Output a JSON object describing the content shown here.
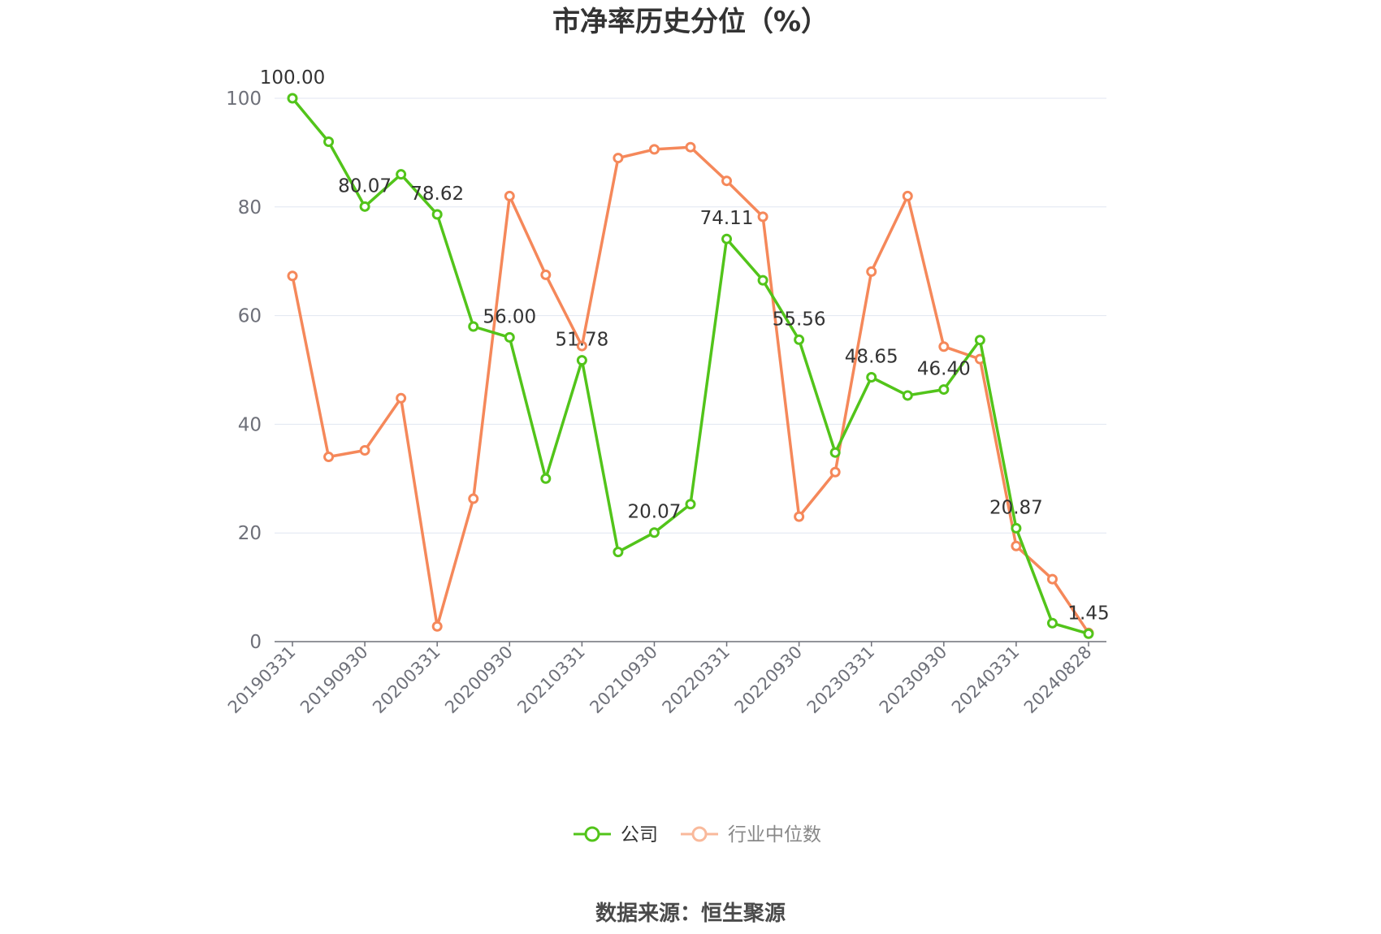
{
  "chart_data": {
    "type": "line",
    "title": "市净率历史分位（%）",
    "xlabel": "",
    "ylabel": "",
    "ylim": [
      0,
      100
    ],
    "y_ticks": [
      0,
      20,
      40,
      60,
      80,
      100
    ],
    "x_tick_labels": [
      "20190331",
      "20190930",
      "20200331",
      "20200930",
      "20210331",
      "20210930",
      "20220331",
      "20220930",
      "20230331",
      "20230930",
      "20240331",
      "20240828"
    ],
    "x": [
      "20190331",
      "20190630",
      "20190930",
      "20191231",
      "20200331",
      "20200630",
      "20200930",
      "20201231",
      "20210331",
      "20210630",
      "20210930",
      "20211231",
      "20220331",
      "20220630",
      "20220930",
      "20221231",
      "20230331",
      "20230630",
      "20230930",
      "20231231",
      "20240331",
      "20240630",
      "20240828"
    ],
    "grid": true,
    "legend_position": "bottom",
    "series": [
      {
        "name": "公司",
        "color": "#52c41a",
        "values": [
          100.0,
          92.0,
          80.07,
          86.0,
          78.62,
          58.0,
          56.0,
          30.0,
          51.78,
          16.5,
          20.07,
          25.3,
          74.11,
          66.5,
          55.56,
          34.8,
          48.65,
          45.3,
          46.4,
          55.5,
          20.87,
          3.4,
          1.45
        ],
        "labels": [
          "100.00",
          "",
          "80.07",
          "",
          "78.62",
          "",
          "56.00",
          "",
          "51.78",
          "",
          "20.07",
          "",
          "74.11",
          "",
          "55.56",
          "",
          "48.65",
          "",
          "46.40",
          "",
          "20.87",
          "",
          "1.45"
        ]
      },
      {
        "name": "行业中位数",
        "color": "#f5885a",
        "values": [
          67.3,
          34.0,
          35.2,
          44.8,
          2.8,
          26.3,
          82.0,
          67.5,
          54.4,
          89.0,
          90.6,
          91.0,
          84.8,
          78.2,
          23.0,
          31.2,
          68.1,
          82.0,
          54.3,
          52.0,
          17.6,
          11.5,
          1.6
        ]
      }
    ]
  },
  "legend": {
    "company": "公司",
    "industry": "行业中位数"
  },
  "source_text": "数据来源：恒生聚源"
}
